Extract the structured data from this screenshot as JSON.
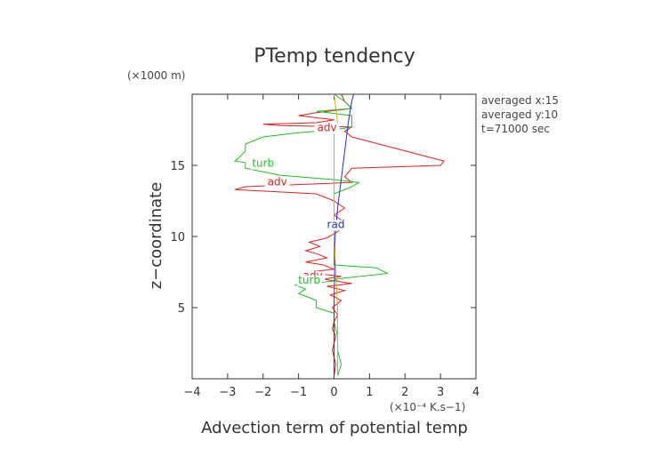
{
  "chart_data": {
    "type": "line",
    "title": "PTemp tendency",
    "xlabel": "Advection term of potential temp",
    "ylabel": "z−coordinate",
    "x_unit": "(×10⁻⁴ K.s−1)",
    "y_unit": "(×1000 m)",
    "xlim": [
      -4,
      4
    ],
    "ylim": [
      0,
      20
    ],
    "x_ticks": [
      -4,
      -3,
      -2,
      -1,
      0,
      1,
      2,
      3,
      4
    ],
    "x_tick_labels": [
      "−4",
      "−3",
      "−2",
      "−1",
      "0",
      "1",
      "2",
      "3",
      "4"
    ],
    "y_ticks": [
      5,
      10,
      15
    ],
    "y_tick_labels": [
      "5",
      "10",
      "15"
    ],
    "annotations": [
      "averaged  x:15",
      "averaged  y:10",
      "t=71000 sec"
    ],
    "series": [
      {
        "name": "adv",
        "color": "#e02020",
        "label_positions": [
          [
            -0.2,
            17.4
          ],
          [
            -1.6,
            13.6
          ],
          [
            -0.6,
            7.0
          ]
        ],
        "points": [
          [
            0.0,
            0.2
          ],
          [
            0.05,
            1.0
          ],
          [
            0.0,
            1.5
          ],
          [
            -0.05,
            2.0
          ],
          [
            0.0,
            2.5
          ],
          [
            0.05,
            3.0
          ],
          [
            -0.05,
            3.5
          ],
          [
            0.0,
            4.0
          ],
          [
            0.1,
            4.5
          ],
          [
            -0.05,
            5.0
          ],
          [
            0.2,
            5.5
          ],
          [
            -0.1,
            5.9
          ],
          [
            0.3,
            6.2
          ],
          [
            -0.2,
            6.5
          ],
          [
            0.5,
            6.7
          ],
          [
            -0.3,
            7.0
          ],
          [
            0.2,
            7.2
          ],
          [
            -0.5,
            7.4
          ],
          [
            -0.7,
            7.5
          ],
          [
            0.0,
            7.7
          ],
          [
            -0.3,
            8.0
          ],
          [
            -0.8,
            8.2
          ],
          [
            -0.2,
            8.5
          ],
          [
            -0.5,
            8.8
          ],
          [
            -0.8,
            9.0
          ],
          [
            -0.4,
            9.3
          ],
          [
            -0.7,
            9.6
          ],
          [
            -0.2,
            9.9
          ],
          [
            0.0,
            10.2
          ],
          [
            0.2,
            10.5
          ],
          [
            0.3,
            11.0
          ],
          [
            0.0,
            11.5
          ],
          [
            0.3,
            12.0
          ],
          [
            0.0,
            12.5
          ],
          [
            -0.5,
            13.0
          ],
          [
            -2.8,
            13.3
          ],
          [
            -2.5,
            13.5
          ],
          [
            0.5,
            13.8
          ],
          [
            0.3,
            14.2
          ],
          [
            0.5,
            14.8
          ],
          [
            3.0,
            15.0
          ],
          [
            3.1,
            15.3
          ],
          [
            2.8,
            15.5
          ],
          [
            0.5,
            17.0
          ],
          [
            0.3,
            17.4
          ],
          [
            0.5,
            17.7
          ],
          [
            -1.5,
            17.8
          ],
          [
            -2.0,
            17.9
          ],
          [
            -0.5,
            18.0
          ],
          [
            0.0,
            18.2
          ],
          [
            -1.0,
            18.5
          ],
          [
            -0.5,
            18.7
          ],
          [
            0.5,
            19.0
          ],
          [
            0.3,
            19.5
          ],
          [
            0.2,
            20.0
          ]
        ]
      },
      {
        "name": "turb",
        "color": "#20c020",
        "label_positions": [
          [
            -2.0,
            14.9
          ],
          [
            -0.7,
            6.7
          ]
        ],
        "points": [
          [
            0.1,
            0.2
          ],
          [
            0.2,
            1.0
          ],
          [
            0.1,
            2.0
          ],
          [
            0.1,
            3.0
          ],
          [
            0.0,
            4.0
          ],
          [
            0.0,
            4.6
          ],
          [
            -0.5,
            5.0
          ],
          [
            -0.5,
            5.5
          ],
          [
            -1.0,
            6.0
          ],
          [
            -0.8,
            6.3
          ],
          [
            -1.1,
            6.6
          ],
          [
            0.1,
            6.9
          ],
          [
            0.0,
            7.0
          ],
          [
            1.5,
            7.4
          ],
          [
            1.2,
            7.8
          ],
          [
            0.0,
            8.0
          ],
          [
            0.0,
            10.0
          ],
          [
            0.0,
            13.0
          ],
          [
            0.5,
            13.5
          ],
          [
            0.7,
            13.8
          ],
          [
            0.0,
            14.0
          ],
          [
            -1.5,
            14.3
          ],
          [
            -2.5,
            14.8
          ],
          [
            -2.5,
            15.2
          ],
          [
            -2.8,
            15.3
          ],
          [
            -2.7,
            15.5
          ],
          [
            -2.5,
            16.0
          ],
          [
            -2.5,
            16.5
          ],
          [
            -2.0,
            17.0
          ],
          [
            -1.0,
            17.3
          ],
          [
            0.0,
            17.5
          ],
          [
            0.5,
            17.7
          ],
          [
            0.5,
            18.5
          ],
          [
            -0.5,
            18.8
          ],
          [
            0.5,
            19.0
          ],
          [
            0.3,
            19.5
          ],
          [
            0.0,
            20.0
          ]
        ]
      },
      {
        "name": "rad",
        "color": "#2030d0",
        "label_positions": [
          [
            0.05,
            10.6
          ]
        ],
        "points": [
          [
            0.0,
            0.2
          ],
          [
            0.0,
            5.0
          ],
          [
            0.03,
            10.0
          ],
          [
            0.1,
            12.0
          ],
          [
            0.2,
            14.0
          ],
          [
            0.3,
            16.0
          ],
          [
            0.4,
            18.0
          ],
          [
            0.5,
            19.5
          ],
          [
            0.55,
            20.0
          ]
        ]
      },
      {
        "color": "#e8a020",
        "points": [
          [
            0.1,
            0.2
          ],
          [
            0.1,
            5.0
          ],
          [
            0.0,
            10.0
          ],
          [
            0.0,
            16.0
          ],
          [
            0.0,
            17.5
          ],
          [
            0.1,
            18.0
          ],
          [
            0.0,
            20.0
          ]
        ]
      }
    ]
  }
}
